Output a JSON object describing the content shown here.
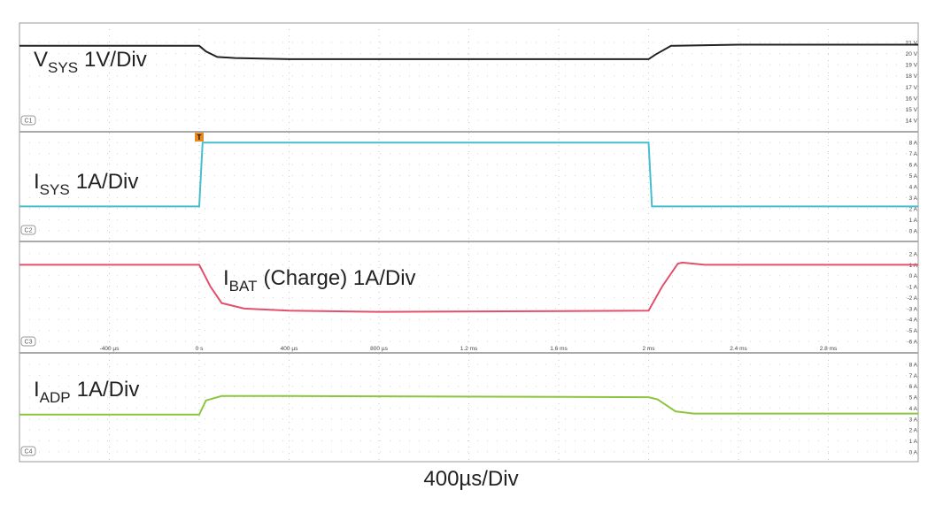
{
  "chart_data": [
    {
      "type": "line",
      "label": {
        "main": "V",
        "sub": "SYS",
        "rest": "1V/Div"
      },
      "channel": "C1",
      "color": "#222222",
      "xlim": [
        -800,
        3200
      ],
      "ylim": [
        13.05,
        22.75
      ],
      "yticks": [
        {
          "value": 21,
          "label": "21 V"
        },
        {
          "value": 20,
          "label": "20 V"
        },
        {
          "value": 19,
          "label": "19 V"
        },
        {
          "value": 18,
          "label": "18 V"
        },
        {
          "value": 17,
          "label": "17 V"
        },
        {
          "value": 16,
          "label": "16 V"
        },
        {
          "value": 15,
          "label": "15 V"
        },
        {
          "value": 14,
          "label": "14 V"
        }
      ],
      "x": [
        -800,
        0,
        30,
        80,
        160,
        400,
        1200,
        2000,
        2030,
        2100,
        2400,
        3200
      ],
      "values": [
        20.7,
        20.7,
        20.2,
        19.7,
        19.6,
        19.5,
        19.5,
        19.5,
        19.9,
        20.7,
        20.8,
        20.8
      ]
    },
    {
      "type": "line",
      "label": {
        "main": "I",
        "sub": "SYS",
        "rest": "1A/Div"
      },
      "channel": "C2",
      "trigger": "T",
      "color": "#45bfce",
      "xlim": [
        -800,
        3200
      ],
      "ylim": [
        -0.9,
        8.9
      ],
      "yticks": [
        {
          "value": 8,
          "label": "8 A"
        },
        {
          "value": 7,
          "label": "7 A"
        },
        {
          "value": 6,
          "label": "6 A"
        },
        {
          "value": 5,
          "label": "5 A"
        },
        {
          "value": 4,
          "label": "4 A"
        },
        {
          "value": 3,
          "label": "3 A"
        },
        {
          "value": 2,
          "label": "2 A"
        },
        {
          "value": 1,
          "label": "1 A"
        },
        {
          "value": 0,
          "label": "0 A"
        }
      ],
      "x": [
        -800,
        0,
        15,
        2000,
        2015,
        3200
      ],
      "values": [
        2.2,
        2.2,
        8.0,
        8.0,
        2.2,
        2.2
      ]
    },
    {
      "type": "line",
      "label": {
        "main": "I",
        "sub": "BAT",
        "rest": "(Charge) 1A/Div"
      },
      "channel": "C3",
      "color": "#e2506c",
      "xlim": [
        -800,
        3200
      ],
      "ylim": [
        -6.97,
        3.05
      ],
      "yticks": [
        {
          "value": 2,
          "label": "2 A"
        },
        {
          "value": 1,
          "label": "1 A"
        },
        {
          "value": 0,
          "label": "0 A"
        },
        {
          "value": -1,
          "label": "-1 A"
        },
        {
          "value": -2,
          "label": "-2 A"
        },
        {
          "value": -3,
          "label": "-3 A"
        },
        {
          "value": -4,
          "label": "-4 A"
        },
        {
          "value": -5,
          "label": "-5 A"
        },
        {
          "value": -6,
          "label": "-6 A"
        }
      ],
      "xticks": [
        {
          "value": -400,
          "label": "-400 µs"
        },
        {
          "value": 0,
          "label": "0 s"
        },
        {
          "value": 400,
          "label": "400 µs"
        },
        {
          "value": 800,
          "label": "800 µs"
        },
        {
          "value": 1200,
          "label": "1.2 ms"
        },
        {
          "value": 1600,
          "label": "1.6 ms"
        },
        {
          "value": 2000,
          "label": "2 ms"
        },
        {
          "value": 2400,
          "label": "2.4 ms"
        },
        {
          "value": 2800,
          "label": "2.8 ms"
        }
      ],
      "x": [
        -800,
        0,
        50,
        100,
        200,
        400,
        800,
        2000,
        2060,
        2130,
        2150,
        2250,
        3200
      ],
      "values": [
        1.0,
        1.0,
        -1.0,
        -2.5,
        -3.0,
        -3.2,
        -3.3,
        -3.2,
        -1.0,
        1.1,
        1.2,
        1.0,
        1.0
      ]
    },
    {
      "type": "line",
      "label": {
        "main": "I",
        "sub": "ADP",
        "rest": "1A/Div"
      },
      "channel": "C4",
      "color": "#8cc63f",
      "xlim": [
        -800,
        3200
      ],
      "ylim": [
        -0.9,
        8.97
      ],
      "yticks": [
        {
          "value": 8,
          "label": "8 A"
        },
        {
          "value": 7,
          "label": "7 A"
        },
        {
          "value": 6,
          "label": "6 A"
        },
        {
          "value": 5,
          "label": "5 A"
        },
        {
          "value": 4,
          "label": "4 A"
        },
        {
          "value": 3,
          "label": "3 A"
        },
        {
          "value": 2,
          "label": "2 A"
        },
        {
          "value": 1,
          "label": "1 A"
        },
        {
          "value": 0,
          "label": "0 A"
        }
      ],
      "x": [
        -800,
        0,
        30,
        100,
        400,
        2000,
        2040,
        2120,
        2200,
        3200
      ],
      "values": [
        3.4,
        3.4,
        4.7,
        5.1,
        5.1,
        5.0,
        4.8,
        3.7,
        3.5,
        3.5
      ]
    }
  ],
  "x_scale_label": "400µs/Div"
}
